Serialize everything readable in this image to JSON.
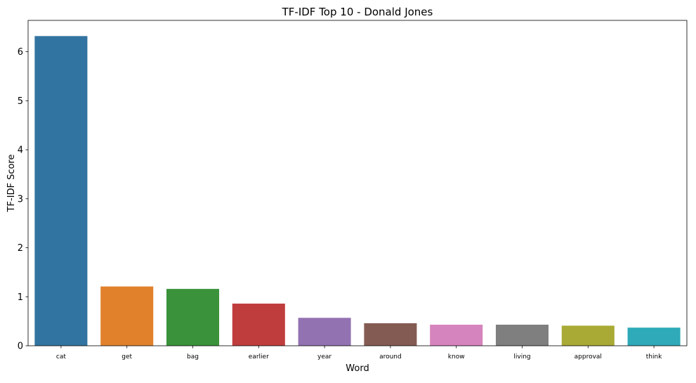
{
  "chart_data": {
    "type": "bar",
    "title": "TF-IDF Top 10 - Donald Jones",
    "xlabel": "Word",
    "ylabel": "TF-IDF Score",
    "categories": [
      "cat",
      "get",
      "bag",
      "earlier",
      "year",
      "around",
      "know",
      "living",
      "approval",
      "think"
    ],
    "values": [
      6.32,
      1.21,
      1.16,
      0.86,
      0.57,
      0.46,
      0.43,
      0.43,
      0.41,
      0.37
    ],
    "colors": [
      "#3274a1",
      "#e1812c",
      "#3a923a",
      "#c03d3e",
      "#9372b2",
      "#845b53",
      "#d684bd",
      "#7f7f7f",
      "#a9aa35",
      "#2eaab8"
    ],
    "ylim": [
      0,
      6.64
    ],
    "yticks": [
      0,
      1,
      2,
      3,
      4,
      5,
      6
    ],
    "ytick_labels": [
      "0",
      "1",
      "2",
      "3",
      "4",
      "5",
      "6"
    ],
    "grid": false,
    "legend": "none"
  }
}
